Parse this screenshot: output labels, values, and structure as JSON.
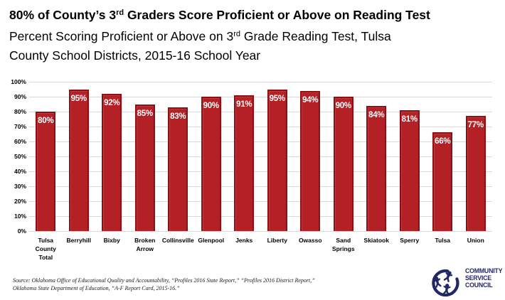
{
  "header": {
    "title_part1": "80% of County’s 3",
    "title_sup": "rd",
    "title_part2": " Graders Score Proficient or Above on Reading Test",
    "subtitle_part1": "Percent Scoring Proficient or Above on 3",
    "subtitle_sup": "rd",
    "subtitle_part2": " Grade Reading Test, Tulsa",
    "subtitle_line2": "County School Districts, 2015-16 School Year"
  },
  "chart_data": {
    "type": "bar",
    "title": "80% of County’s 3rd Graders Score Proficient or Above on Reading Test",
    "subtitle": "Percent Scoring Proficient or Above on 3rd Grade Reading Test, Tulsa County School Districts, 2015-16 School Year",
    "categories": [
      "Tulsa County Total",
      "Berryhill",
      "Bixby",
      "Broken Arrow",
      "Collinsville",
      "Glenpool",
      "Jenks",
      "Liberty",
      "Owasso",
      "Sand Springs",
      "Skiatook",
      "Sperry",
      "Tulsa",
      "Union"
    ],
    "values": [
      80,
      95,
      92,
      85,
      83,
      90,
      91,
      95,
      94,
      90,
      84,
      81,
      66,
      77
    ],
    "data_labels": [
      "80%",
      "95%",
      "92%",
      "85%",
      "83%",
      "90%",
      "91%",
      "95%",
      "94%",
      "90%",
      "84%",
      "81%",
      "66%",
      "77%"
    ],
    "yticks": [
      "100%",
      "90%",
      "80%",
      "70%",
      "60%",
      "50%",
      "40%",
      "30%",
      "20%",
      "10%",
      "0%"
    ],
    "ylim": [
      0,
      100
    ],
    "grid": true,
    "legend": "none",
    "bar_color": "#b32025",
    "bar_border_color": "#8c1115",
    "gridline_color": "#d9d9d9",
    "label_color": "#ffffff"
  },
  "footer": {
    "source_line1": "Source: Oklahoma Office of Educational Quality and Accountability, “Profiles 2016 State Report,” “Profiles 2016 District Report,”",
    "source_line2": "Oklahoma State Department of Education, “A-F Report Card, 2015-16.”",
    "logo": {
      "line1": "COMMUNITY",
      "line2": "SERVICE",
      "line3": "COUNCIL",
      "color": "#222765"
    }
  }
}
